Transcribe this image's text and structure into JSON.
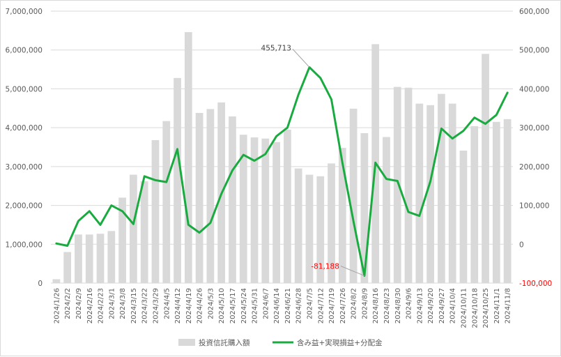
{
  "chart_data": {
    "type": "bar+line",
    "title": "",
    "x": [
      "2024/1/26",
      "2024/2/2",
      "2024/2/9",
      "2024/2/16",
      "2024/2/23",
      "2024/3/1",
      "2024/3/8",
      "2024/3/15",
      "2024/3/22",
      "2024/3/29",
      "2024/4/5",
      "2024/4/12",
      "2024/4/19",
      "2024/4/26",
      "2024/5/3",
      "2024/5/10",
      "2024/5/17",
      "2024/5/24",
      "2024/5/31",
      "2024/6/7",
      "2024/6/14",
      "2024/6/21",
      "2024/6/28",
      "2024/7/5",
      "2024/7/12",
      "2024/7/19",
      "2024/7/26",
      "2024/8/2",
      "2024/8/9",
      "2024/8/16",
      "2024/8/23",
      "2024/8/30",
      "2024/9/6",
      "2024/9/13",
      "2024/9/20",
      "2024/9/27",
      "2024/10/4",
      "2024/10/11",
      "2024/10/18",
      "2024/10/25",
      "2024/11/1",
      "2024/11/8"
    ],
    "series": [
      {
        "name": "投資信託購入額",
        "type": "bar",
        "axis": "left",
        "color": "#d9d9d9",
        "values": [
          100000,
          800000,
          1250000,
          1250000,
          1270000,
          1340000,
          2200000,
          2790000,
          2620000,
          3680000,
          4170000,
          5280000,
          6460000,
          4380000,
          4480000,
          4650000,
          4290000,
          3820000,
          3750000,
          3720000,
          3630000,
          3950000,
          2950000,
          2790000,
          2750000,
          3080000,
          3480000,
          4490000,
          3860000,
          6150000,
          3760000,
          5050000,
          5030000,
          4620000,
          4580000,
          4870000,
          4620000,
          3410000,
          4040000,
          5900000,
          4150000,
          4220000
        ]
      },
      {
        "name": "含み益+実現損益+分配金",
        "type": "line",
        "axis": "right",
        "color": "#1aab40",
        "values": [
          2000,
          -4000,
          60000,
          85000,
          50000,
          100000,
          85000,
          52000,
          175000,
          165000,
          160000,
          245000,
          50000,
          30000,
          55000,
          130000,
          190000,
          230000,
          215000,
          232000,
          278000,
          300000,
          385000,
          455713,
          428000,
          373000,
          210000,
          60000,
          -81188,
          210000,
          168000,
          163000,
          83000,
          73000,
          162000,
          298000,
          272000,
          292000,
          326000,
          310000,
          333000,
          390000
        ]
      }
    ],
    "y_left": {
      "min": 0,
      "max": 7000000,
      "step": 1000000,
      "ticks": [
        "0",
        "1,000,000",
        "2,000,000",
        "3,000,000",
        "4,000,000",
        "5,000,000",
        "6,000,000",
        "7,000,000"
      ]
    },
    "y_right": {
      "min": -100000,
      "max": 600000,
      "step": 100000,
      "ticks": [
        "-100,000",
        "0",
        "100,000",
        "200,000",
        "300,000",
        "400,000",
        "500,000",
        "600,000"
      ],
      "negative_color": "#ff0000"
    },
    "annotations": [
      {
        "label": "455,713",
        "series": 1,
        "index": 23,
        "color": "#404040"
      },
      {
        "label": "-81,188",
        "series": 1,
        "index": 28,
        "color": "#ff0000"
      }
    ],
    "grid": "horizontal",
    "legend_position": "bottom"
  }
}
